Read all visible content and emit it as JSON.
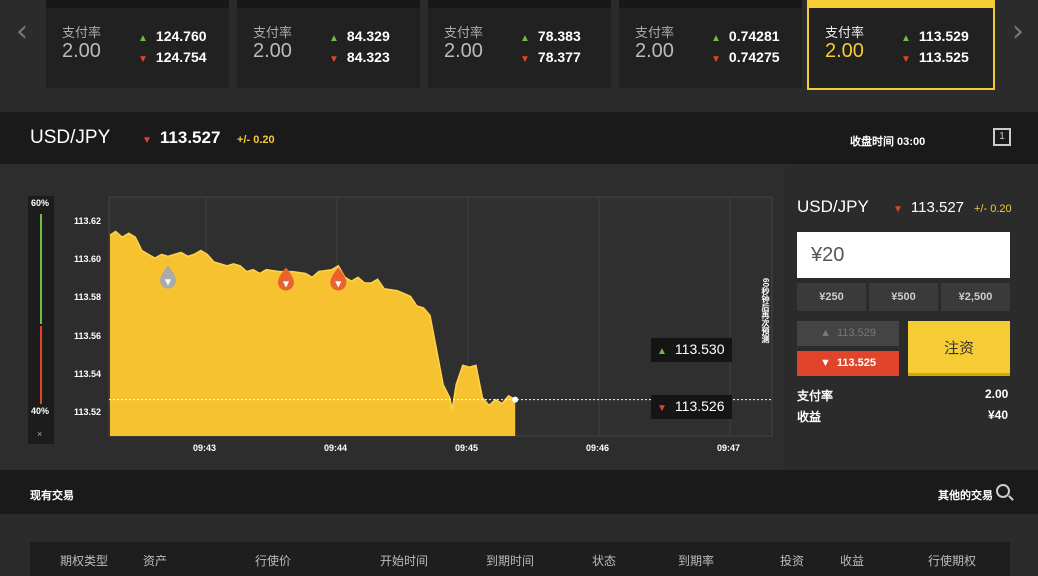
{
  "ticker_cards": [
    {
      "label": "支付率",
      "rate": "2.00",
      "up": "124.760",
      "down": "124.754"
    },
    {
      "label": "支付率",
      "rate": "2.00",
      "up": "84.329",
      "down": "84.323"
    },
    {
      "label": "支付率",
      "rate": "2.00",
      "up": "78.383",
      "down": "78.377"
    },
    {
      "label": "支付率",
      "rate": "2.00",
      "up": "0.74281",
      "down": "0.74275"
    },
    {
      "label": "支付率",
      "rate": "2.00",
      "up": "113.529",
      "down": "113.525"
    }
  ],
  "header": {
    "pair": "USD/JPY",
    "price": "113.527",
    "change": "+/- 0.20",
    "close_time": "收盘时间 03:00",
    "expand_label": "1"
  },
  "gauge": {
    "top": "60%",
    "bottom": "40%",
    "close": "×"
  },
  "chart_data": {
    "type": "area",
    "y_ticks": [
      "113.62",
      "113.60",
      "113.58",
      "113.56",
      "113.54",
      "113.52"
    ],
    "x_ticks": [
      "09:43",
      "09:44",
      "09:45",
      "09:46",
      "09:47"
    ],
    "ylim": [
      113.508,
      113.633
    ],
    "current_price": 113.527,
    "price_tag_up": "113.530",
    "price_tag_down": "113.526",
    "vertical_label": "60秒钟后再次预测",
    "series": [
      {
        "values": [
          [
            0,
            113.613
          ],
          [
            0.05,
            113.615
          ],
          [
            0.1,
            113.612
          ],
          [
            0.15,
            113.614
          ],
          [
            0.2,
            113.612
          ],
          [
            0.25,
            113.605
          ],
          [
            0.3,
            113.603
          ],
          [
            0.35,
            113.601
          ],
          [
            0.4,
            113.603
          ],
          [
            0.45,
            113.602
          ],
          [
            0.5,
            113.603
          ],
          [
            0.55,
            113.604
          ],
          [
            0.6,
            113.602
          ],
          [
            0.65,
            113.603
          ],
          [
            0.7,
            113.605
          ],
          [
            0.75,
            113.603
          ],
          [
            0.8,
            113.599
          ],
          [
            0.85,
            113.598
          ],
          [
            0.9,
            113.597
          ],
          [
            0.95,
            113.598
          ],
          [
            1.0,
            113.597
          ],
          [
            1.05,
            113.594
          ],
          [
            1.1,
            113.595
          ],
          [
            1.15,
            113.593
          ],
          [
            1.2,
            113.595
          ],
          [
            1.3,
            113.594
          ],
          [
            1.4,
            113.594
          ],
          [
            1.5,
            113.593
          ],
          [
            1.55,
            113.591
          ],
          [
            1.6,
            113.594
          ],
          [
            1.7,
            113.595
          ],
          [
            1.75,
            113.597
          ],
          [
            1.8,
            113.591
          ],
          [
            1.85,
            113.589
          ],
          [
            1.9,
            113.591
          ],
          [
            1.95,
            113.588
          ],
          [
            2.0,
            113.588
          ],
          [
            2.05,
            113.59
          ],
          [
            2.1,
            113.585
          ],
          [
            2.2,
            113.584
          ],
          [
            2.3,
            113.581
          ],
          [
            2.35,
            113.576
          ],
          [
            2.4,
            113.575
          ],
          [
            2.45,
            113.571
          ],
          [
            2.5,
            113.553
          ],
          [
            2.55,
            113.535
          ],
          [
            2.6,
            113.528
          ],
          [
            2.62,
            113.522
          ],
          [
            2.65,
            113.535
          ],
          [
            2.7,
            113.545
          ],
          [
            2.75,
            113.544
          ],
          [
            2.8,
            113.545
          ],
          [
            2.85,
            113.528
          ],
          [
            2.9,
            113.524
          ],
          [
            2.95,
            113.527
          ],
          [
            3.0,
            113.525
          ],
          [
            3.05,
            113.529
          ],
          [
            3.1,
            113.527
          ]
        ]
      }
    ],
    "markers": [
      {
        "x": 0.45,
        "y": 113.594,
        "color": "#aaaaaa"
      },
      {
        "x": 1.35,
        "y": 113.593,
        "color": "#e9622f"
      },
      {
        "x": 1.75,
        "y": 113.593,
        "color": "#e9622f"
      }
    ]
  },
  "panel": {
    "pair": "USD/JPY",
    "price": "113.527",
    "change": "+/- 0.20",
    "amount": "¥20",
    "quick": [
      "¥250",
      "¥500",
      "¥2,500"
    ],
    "call_price": "113.529",
    "put_price": "113.525",
    "invest_label": "注资",
    "payout_label": "支付率",
    "payout_value": "2.00",
    "profit_label": "收益",
    "profit_value": "¥40"
  },
  "trades": {
    "title": "现有交易",
    "other_label": "其他的交易",
    "columns": [
      "期权类型",
      "资产",
      "行使价",
      "开始时间",
      "到期时间",
      "状态",
      "到期率",
      "投资",
      "收益",
      "行使期权"
    ]
  },
  "colors": {
    "accent": "#f5cc33",
    "up": "#6dbe45",
    "down": "#e0452b"
  },
  "icons": {
    "left": "chevron-left-icon",
    "right": "chevron-right-icon",
    "search": "search-icon"
  }
}
